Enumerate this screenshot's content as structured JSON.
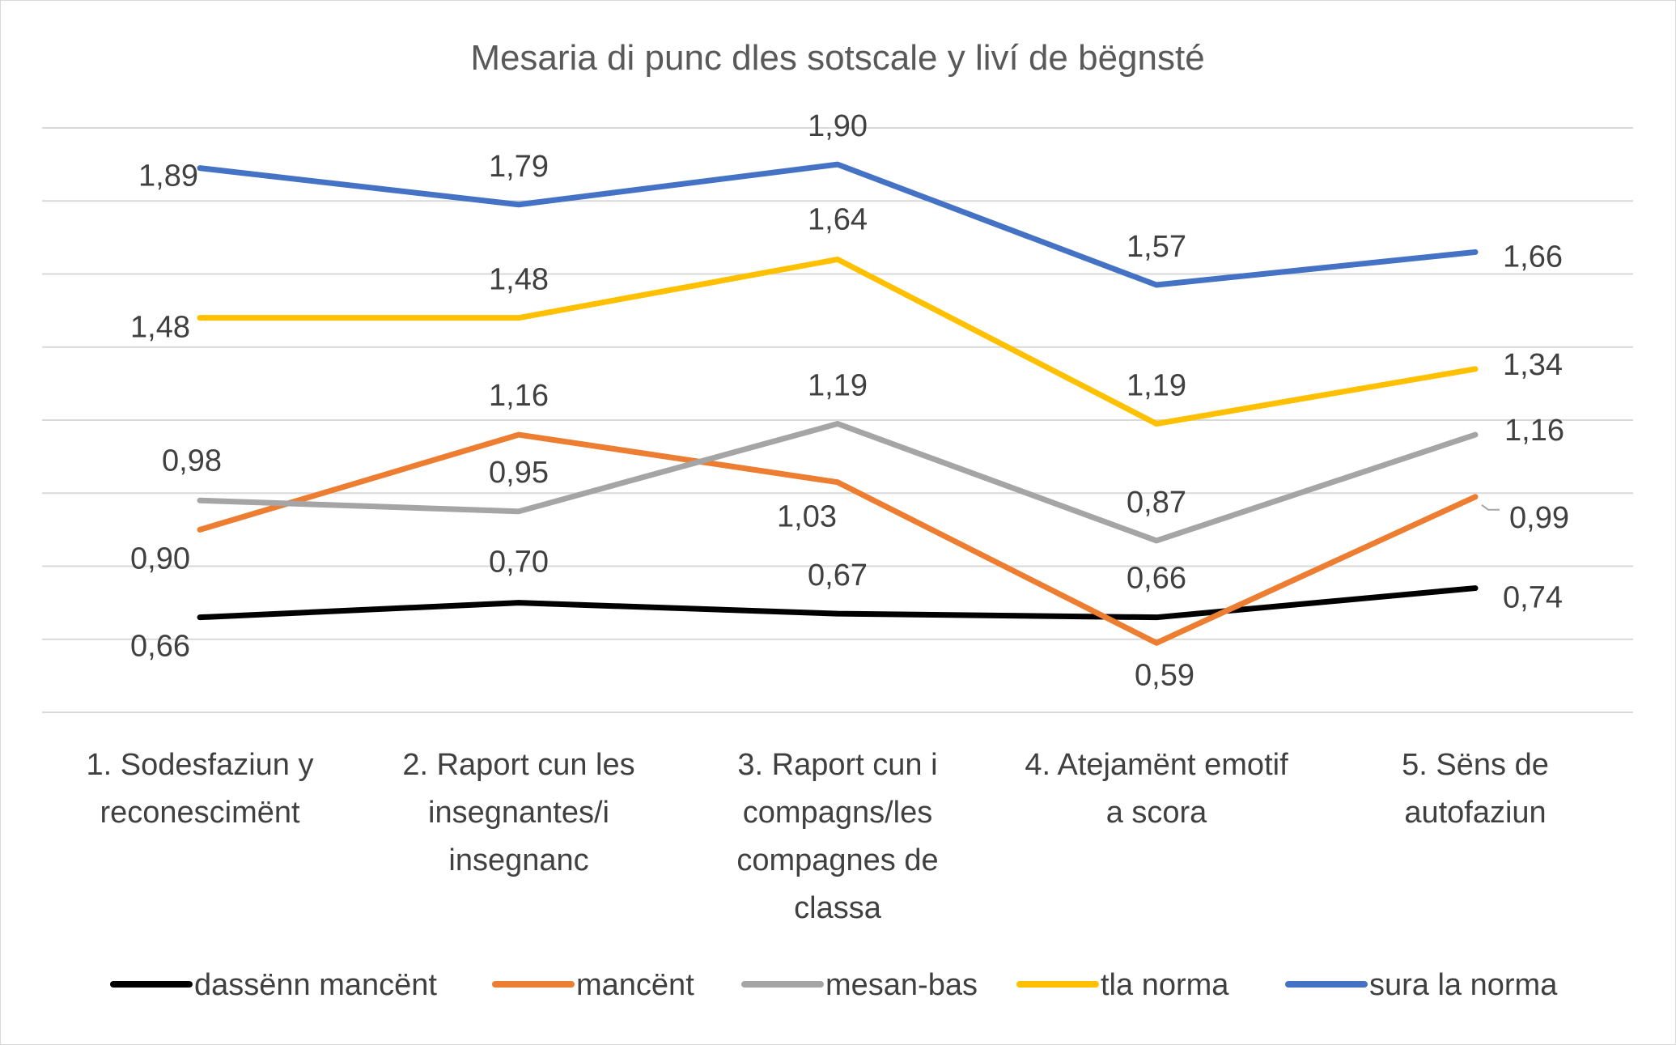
{
  "chart_data": {
    "type": "line",
    "title": "Mesaria di punc dles sotscale y liví de bëgnsté",
    "categories": [
      [
        "1. Sodesfaziun y",
        "reconescimënt"
      ],
      [
        "2. Raport cun les",
        "insegnantes/i",
        "insegnanc"
      ],
      [
        "3. Raport cun i",
        "compagns/les",
        "compagnes de",
        "classa"
      ],
      [
        "4. Atejamënt emotif",
        "a scora"
      ],
      [
        "5. Sëns de",
        "autofaziun"
      ]
    ],
    "ylim": [
      0.4,
      2.0
    ],
    "grid": true,
    "legend_position": "bottom",
    "series": [
      {
        "name": "dassënn mancënt",
        "color": "#000000",
        "values": [
          0.66,
          0.7,
          0.67,
          0.66,
          0.74
        ],
        "labels": [
          "0,66",
          "0,70",
          "0,67",
          "0,66",
          "0,74"
        ]
      },
      {
        "name": "mancënt",
        "color": "#ED7D31",
        "values": [
          0.9,
          1.16,
          1.03,
          0.59,
          0.99
        ],
        "labels": [
          "0,90",
          "1,16",
          "1,03",
          "0,59",
          "0,99"
        ]
      },
      {
        "name": "mesan-bas",
        "color": "#A5A5A5",
        "values": [
          0.98,
          0.95,
          1.19,
          0.87,
          1.16
        ],
        "labels": [
          "0,98",
          "0,95",
          "1,19",
          "0,87",
          "1,16"
        ]
      },
      {
        "name": "tla norma",
        "color": "#FFC000",
        "values": [
          1.48,
          1.48,
          1.64,
          1.19,
          1.34
        ],
        "labels": [
          "1,48",
          "1,48",
          "1,64",
          "1,19",
          "1,34"
        ]
      },
      {
        "name": "sura la norma",
        "color": "#4472C4",
        "values": [
          1.89,
          1.79,
          1.9,
          1.57,
          1.66
        ],
        "labels": [
          "1,89",
          "1,79",
          "1,90",
          "1,57",
          "1,66"
        ]
      }
    ]
  }
}
